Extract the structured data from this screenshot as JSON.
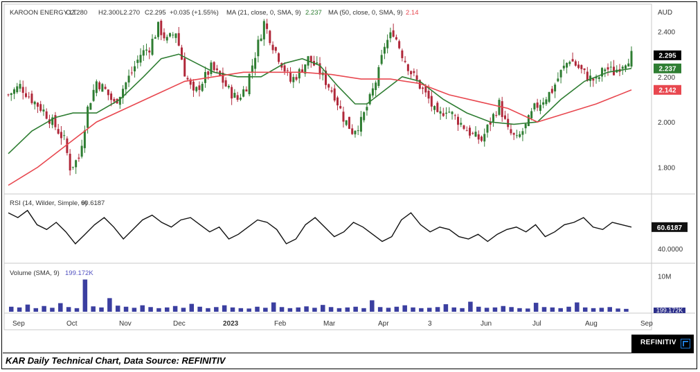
{
  "chart_data": [
    {
      "type": "candlestick",
      "title": "KAROON ENERGY LT",
      "ohlc_header": {
        "open": "O2.280",
        "high": "H2.300",
        "low": "L2.270",
        "close": "C2.295",
        "change": "+0.035 (+1.55%)"
      },
      "currency": "AUD",
      "ylim": [
        1.7,
        2.46
      ],
      "y_ticks": [
        "2.400",
        "2.200",
        "2.000",
        "1.800"
      ],
      "x_labels": [
        "Sep",
        "Oct",
        "Nov",
        "Dec",
        "2023",
        "Feb",
        "Mar",
        "Apr",
        "3",
        "Jun",
        "Jul",
        "Aug",
        "Sep"
      ],
      "last_price": "2.295",
      "close_path": [
        [
          0,
          2.12
        ],
        [
          4,
          2.16
        ],
        [
          8,
          2.1
        ],
        [
          12,
          2.05
        ],
        [
          16,
          1.98
        ],
        [
          19,
          1.92
        ],
        [
          21,
          1.8
        ],
        [
          24,
          1.84
        ],
        [
          27,
          2.06
        ],
        [
          30,
          2.18
        ],
        [
          33,
          2.14
        ],
        [
          36,
          2.08
        ],
        [
          39,
          2.15
        ],
        [
          42,
          2.22
        ],
        [
          45,
          2.3
        ],
        [
          48,
          2.33
        ],
        [
          51,
          2.42
        ],
        [
          54,
          2.36
        ],
        [
          57,
          2.4
        ],
        [
          60,
          2.22
        ],
        [
          63,
          2.12
        ],
        [
          66,
          2.18
        ],
        [
          69,
          2.24
        ],
        [
          72,
          2.2
        ],
        [
          75,
          2.14
        ],
        [
          78,
          2.1
        ],
        [
          81,
          2.16
        ],
        [
          84,
          2.3
        ],
        [
          87,
          2.44
        ],
        [
          90,
          2.34
        ],
        [
          93,
          2.26
        ],
        [
          96,
          2.18
        ],
        [
          99,
          2.22
        ],
        [
          102,
          2.28
        ],
        [
          105,
          2.24
        ],
        [
          108,
          2.18
        ],
        [
          111,
          2.12
        ],
        [
          114,
          2.02
        ],
        [
          117,
          1.96
        ],
        [
          120,
          2.0
        ],
        [
          123,
          2.1
        ],
        [
          126,
          2.22
        ],
        [
          128,
          2.34
        ],
        [
          131,
          2.4
        ],
        [
          134,
          2.3
        ],
        [
          137,
          2.22
        ],
        [
          140,
          2.16
        ],
        [
          143,
          2.1
        ],
        [
          146,
          2.02
        ],
        [
          149,
          2.06
        ],
        [
          152,
          2.02
        ],
        [
          155,
          1.98
        ],
        [
          158,
          1.94
        ],
        [
          161,
          1.92
        ],
        [
          164,
          2.0
        ],
        [
          167,
          2.08
        ],
        [
          170,
          1.96
        ],
        [
          173,
          1.92
        ],
        [
          176,
          1.98
        ],
        [
          179,
          2.06
        ],
        [
          182,
          2.1
        ],
        [
          185,
          2.14
        ],
        [
          188,
          2.22
        ],
        [
          191,
          2.28
        ],
        [
          194,
          2.24
        ],
        [
          197,
          2.2
        ],
        [
          200,
          2.18
        ],
        [
          203,
          2.24
        ],
        [
          206,
          2.22
        ],
        [
          209,
          2.26
        ],
        [
          212,
          2.295
        ]
      ],
      "ma_series": [
        {
          "name": "MA (21, close, 0, SMA, 9)",
          "last_value": "2.237",
          "color": "#2e7d32",
          "points": [
            [
              0,
              1.86
            ],
            [
              8,
              1.96
            ],
            [
              16,
              2.02
            ],
            [
              22,
              2.04
            ],
            [
              30,
              2.04
            ],
            [
              38,
              2.1
            ],
            [
              46,
              2.2
            ],
            [
              52,
              2.28
            ],
            [
              58,
              2.3
            ],
            [
              64,
              2.26
            ],
            [
              70,
              2.22
            ],
            [
              78,
              2.2
            ],
            [
              86,
              2.2
            ],
            [
              94,
              2.26
            ],
            [
              100,
              2.28
            ],
            [
              106,
              2.25
            ],
            [
              112,
              2.16
            ],
            [
              118,
              2.08
            ],
            [
              122,
              2.08
            ],
            [
              128,
              2.14
            ],
            [
              134,
              2.2
            ],
            [
              140,
              2.18
            ],
            [
              148,
              2.1
            ],
            [
              156,
              2.04
            ],
            [
              164,
              2.0
            ],
            [
              172,
              1.99
            ],
            [
              180,
              2.0
            ],
            [
              188,
              2.1
            ],
            [
              196,
              2.18
            ],
            [
              204,
              2.22
            ],
            [
              212,
              2.237
            ]
          ]
        },
        {
          "name": "MA (50, close, 0, SMA, 9)",
          "last_value": "2.14",
          "color": "#e8474f",
          "points": [
            [
              0,
              1.72
            ],
            [
              10,
              1.8
            ],
            [
              20,
              1.9
            ],
            [
              30,
              2.0
            ],
            [
              40,
              2.06
            ],
            [
              50,
              2.12
            ],
            [
              60,
              2.18
            ],
            [
              70,
              2.2
            ],
            [
              80,
              2.22
            ],
            [
              90,
              2.22
            ],
            [
              100,
              2.22
            ],
            [
              110,
              2.21
            ],
            [
              120,
              2.19
            ],
            [
              130,
              2.19
            ],
            [
              140,
              2.17
            ],
            [
              150,
              2.12
            ],
            [
              160,
              2.09
            ],
            [
              170,
              2.06
            ],
            [
              180,
              2.0
            ],
            [
              190,
              2.04
            ],
            [
              200,
              2.08
            ],
            [
              212,
              2.142
            ]
          ]
        }
      ],
      "price_tags": [
        {
          "label": "2.295",
          "color": "#000000"
        },
        {
          "label": "2.237",
          "color": "#2e7d32"
        },
        {
          "label": "2.142",
          "color": "#e8474f"
        }
      ]
    },
    {
      "type": "line",
      "title": "RSI (14, Wilder, Simple, 9)",
      "last_value": "60.6187",
      "y_ticks": [
        "40.0000"
      ],
      "ylim": [
        30,
        80
      ],
      "values": [
        70,
        66,
        72,
        60,
        56,
        62,
        54,
        44,
        52,
        60,
        66,
        58,
        48,
        56,
        64,
        68,
        62,
        58,
        64,
        66,
        60,
        54,
        58,
        48,
        52,
        58,
        64,
        62,
        56,
        44,
        48,
        60,
        66,
        58,
        50,
        54,
        62,
        58,
        52,
        46,
        50,
        64,
        70,
        60,
        54,
        58,
        56,
        50,
        48,
        52,
        46,
        52,
        56,
        58,
        54,
        60,
        50,
        54,
        60,
        62,
        66,
        58,
        56,
        62,
        60,
        58
      ]
    },
    {
      "type": "bar",
      "title": "Volume (SMA, 9)",
      "last_value": "199.172K",
      "y_ticks": [
        "10M"
      ],
      "ylim": [
        0,
        12
      ],
      "values": [
        1.4,
        1.2,
        2.0,
        1.0,
        1.6,
        1.1,
        2.4,
        1.3,
        1.0,
        9.0,
        1.5,
        1.2,
        3.8,
        1.7,
        1.4,
        1.1,
        1.8,
        1.3,
        1.0,
        1.2,
        1.6,
        1.1,
        2.2,
        1.4,
        1.0,
        1.3,
        1.8,
        1.2,
        1.0,
        0.9,
        1.4,
        1.1,
        2.6,
        1.3,
        1.0,
        1.2,
        1.5,
        1.1,
        1.9,
        1.3,
        1.0,
        1.2,
        1.4,
        1.0,
        3.2,
        1.3,
        1.1,
        1.4,
        1.8,
        1.2,
        1.0,
        1.1,
        1.3,
        2.1,
        1.2,
        1.0,
        2.8,
        1.4,
        1.1,
        1.2,
        1.6,
        1.3,
        1.0,
        0.9,
        2.5,
        1.3,
        1.2,
        1.0,
        1.4,
        2.6,
        1.2,
        1.0,
        1.1,
        1.3,
        0.9,
        0.8
      ]
    }
  ],
  "brand_label": "REFINITIV",
  "caption": "KAR Daily Technical Chart, Data Source: REFINITIV"
}
